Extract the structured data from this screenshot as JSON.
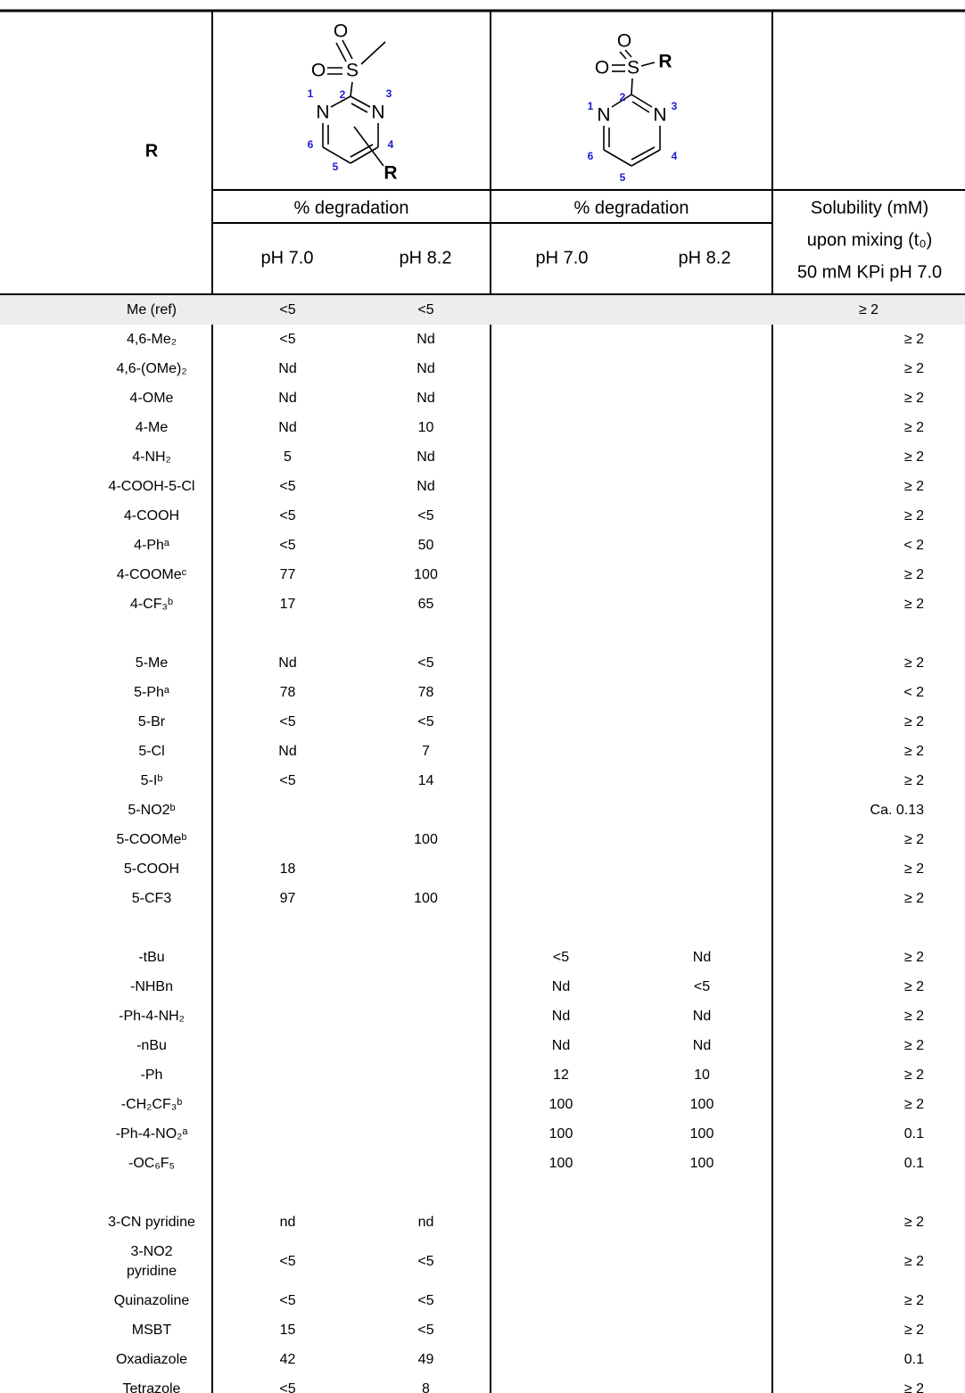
{
  "header": {
    "r_label": "R",
    "structures": [
      {
        "atoms": [
          "O",
          "O",
          "S",
          "N",
          "N",
          "1",
          "2",
          "3",
          "4",
          "5",
          "6",
          "R"
        ]
      },
      {
        "atoms": [
          "O",
          "O",
          "S",
          "R",
          "N",
          "N",
          "1",
          "2",
          "3",
          "4",
          "5",
          "6"
        ]
      }
    ],
    "groups": [
      "% degradation",
      "% degradation"
    ],
    "ph": [
      "pH 7.0",
      "pH 8.2",
      "pH 7.0",
      "pH 8.2"
    ],
    "solubility": [
      "Solubility (mM)",
      "upon mixing (t₀)",
      "50 mM KPi pH 7.0"
    ]
  },
  "table": {
    "groups": [
      [
        {
          "r": "Me (ref)",
          "cells": [
            "<5",
            "<5",
            null,
            null
          ],
          "sol": "≥ 2"
        },
        {
          "r": "4,6-Me₂",
          "cells": [
            "<5",
            "Nd",
            null,
            null
          ],
          "sol": "≥ 2"
        },
        {
          "r": "4,6-(OMe)₂",
          "cells": [
            "Nd",
            "Nd",
            null,
            null
          ],
          "sol": "≥ 2"
        },
        {
          "r": "4-OMe",
          "cells": [
            "Nd",
            "Nd",
            null,
            null
          ],
          "sol": "≥ 2"
        },
        {
          "r": "4-Me",
          "cells": [
            "Nd",
            10,
            null,
            null
          ],
          "sol": "≥ 2"
        },
        {
          "r": "4-NH₂",
          "cells": [
            5,
            "Nd",
            null,
            null
          ],
          "sol": "≥ 2"
        },
        {
          "r": "4-COOH-5-Cl",
          "cells": [
            "<5",
            "Nd",
            null,
            null
          ],
          "sol": "≥ 2"
        },
        {
          "r": "4-COOH",
          "cells": [
            "<5",
            "<5",
            null,
            null
          ],
          "sol": "≥ 2"
        },
        {
          "r": "4-Phᵃ",
          "cells": [
            "<5",
            50,
            null,
            null
          ],
          "sol": "< 2"
        },
        {
          "r": "4-COOMeᶜ",
          "cells": [
            77,
            100,
            null,
            null
          ],
          "sol": "≥ 2"
        },
        {
          "r": "4-CF₃ᵇ",
          "cells": [
            17,
            65,
            null,
            null
          ],
          "sol": "≥ 2"
        }
      ],
      [
        {
          "r": "5-Me",
          "cells": [
            "Nd",
            "<5",
            null,
            null
          ],
          "sol": "≥ 2"
        },
        {
          "r": "5-Phᵃ",
          "cells": [
            78,
            78,
            null,
            null
          ],
          "sol": "< 2"
        },
        {
          "r": "5-Br",
          "cells": [
            "<5",
            "<5",
            null,
            null
          ],
          "sol": "≥ 2"
        },
        {
          "r": "5-Cl",
          "cells": [
            "Nd",
            7,
            null,
            null
          ],
          "sol": "≥ 2"
        },
        {
          "r": "5-Iᵇ",
          "cells": [
            "<5",
            14,
            null,
            null
          ],
          "sol": "≥ 2"
        },
        {
          "r": "5-NO2ᵇ",
          "cells": [
            null,
            null,
            null,
            null
          ],
          "sol": "Ca. 0.13"
        },
        {
          "r": "5-COOMeᵇ",
          "cells": [
            null,
            100,
            null,
            null
          ],
          "sol": "≥ 2"
        },
        {
          "r": "5-COOH",
          "cells": [
            18,
            null,
            null,
            null
          ],
          "sol": "≥ 2"
        },
        {
          "r": "5-CF3",
          "cells": [
            97,
            100,
            null,
            null
          ],
          "sol": "≥ 2"
        }
      ],
      [
        {
          "r": "-tBu",
          "cells": [
            null,
            null,
            "<5",
            "Nd"
          ],
          "sol": "≥ 2"
        },
        {
          "r": "-NHBn",
          "cells": [
            null,
            null,
            "Nd",
            "<5"
          ],
          "sol": "≥ 2"
        },
        {
          "r": "-Ph-4-NH₂",
          "cells": [
            null,
            null,
            "Nd",
            "Nd"
          ],
          "sol": "≥ 2"
        },
        {
          "r": "-nBu",
          "cells": [
            null,
            null,
            "Nd",
            "Nd"
          ],
          "sol": "≥ 2"
        },
        {
          "r": "-Ph",
          "cells": [
            null,
            null,
            12,
            10
          ],
          "sol": "≥ 2"
        },
        {
          "r": "-CH₂CF₃ᵇ",
          "cells": [
            null,
            null,
            100,
            100
          ],
          "sol": "≥ 2"
        },
        {
          "r": "-Ph-4-NO₂ᵃ",
          "cells": [
            null,
            null,
            100,
            100
          ],
          "sol": "0.1"
        },
        {
          "r": "-OC₆F₅",
          "cells": [
            null,
            null,
            100,
            100
          ],
          "sol": "0.1"
        }
      ],
      [
        {
          "r": "3-CN pyridine",
          "cells": [
            "nd",
            "nd",
            null,
            null
          ],
          "sol": "≥ 2"
        },
        {
          "r": "3-NO2 pyridine",
          "cells": [
            "<5",
            "<5",
            null,
            null
          ],
          "sol": "≥ 2"
        },
        {
          "r": "Quinazoline",
          "cells": [
            "<5",
            "<5",
            null,
            null
          ],
          "sol": "≥ 2"
        },
        {
          "r": "MSBT",
          "cells": [
            15,
            "<5",
            null,
            null
          ],
          "sol": "≥ 2"
        },
        {
          "r": "Oxadiazole",
          "cells": [
            42,
            49,
            null,
            null
          ],
          "sol": "0.1"
        },
        {
          "r": "Tetrazole",
          "cells": [
            "<5",
            8,
            null,
            null
          ],
          "sol": "≥ 2"
        }
      ]
    ]
  }
}
